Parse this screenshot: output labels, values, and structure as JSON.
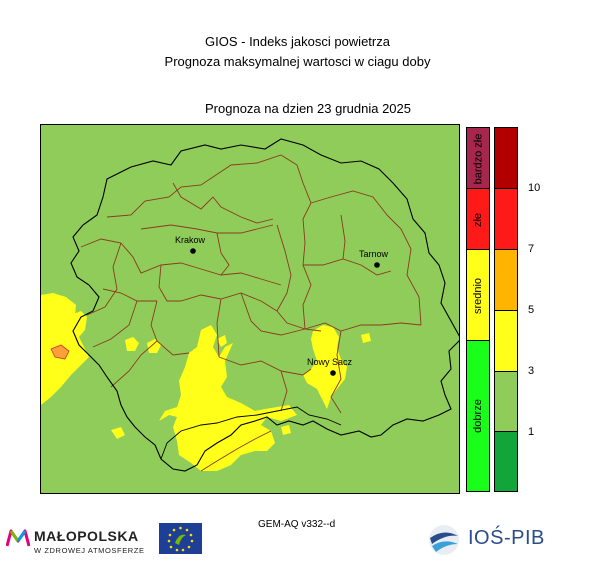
{
  "header": {
    "title": "GIOS - Indeks jakosci powietrza",
    "subtitle": "Prognoza maksymalnej wartosci w ciagu doby",
    "date_line": "Prognoza na dzien  23 grudnia 2025"
  },
  "map": {
    "cities": [
      {
        "name": "Krakow"
      },
      {
        "name": "Tarnow"
      },
      {
        "name": "Nowy Sacz"
      }
    ],
    "colors": {
      "background_green": "#8fcc5a",
      "yellow": "#ffff1a",
      "orange": "#ff9f3a",
      "province_border": "#000000",
      "county_border": "#8b3a1e"
    }
  },
  "legend": {
    "categories": [
      {
        "label": "bardzo złe",
        "color": "#a6264e"
      },
      {
        "label": "złe",
        "color": "#ff1a1a"
      },
      {
        "label": "srednio",
        "color": "#ffff1a"
      },
      {
        "label": "dobrze",
        "color": "#1aff1a"
      }
    ],
    "scale_colors": [
      "#b20000",
      "#ff1a1a",
      "#ffb400",
      "#ffff1a",
      "#8fcc5a",
      "#12a63a"
    ],
    "tick_labels": [
      "10",
      "7",
      "5",
      "3",
      "1"
    ]
  },
  "footer": {
    "model": "GEM-AQ v332--d",
    "malopolska_title": "MAŁOPOLSKA",
    "malopolska_sub": "W ZDROWEJ ATMOSFERZE",
    "ios_text": "IOŚ-PIB"
  }
}
